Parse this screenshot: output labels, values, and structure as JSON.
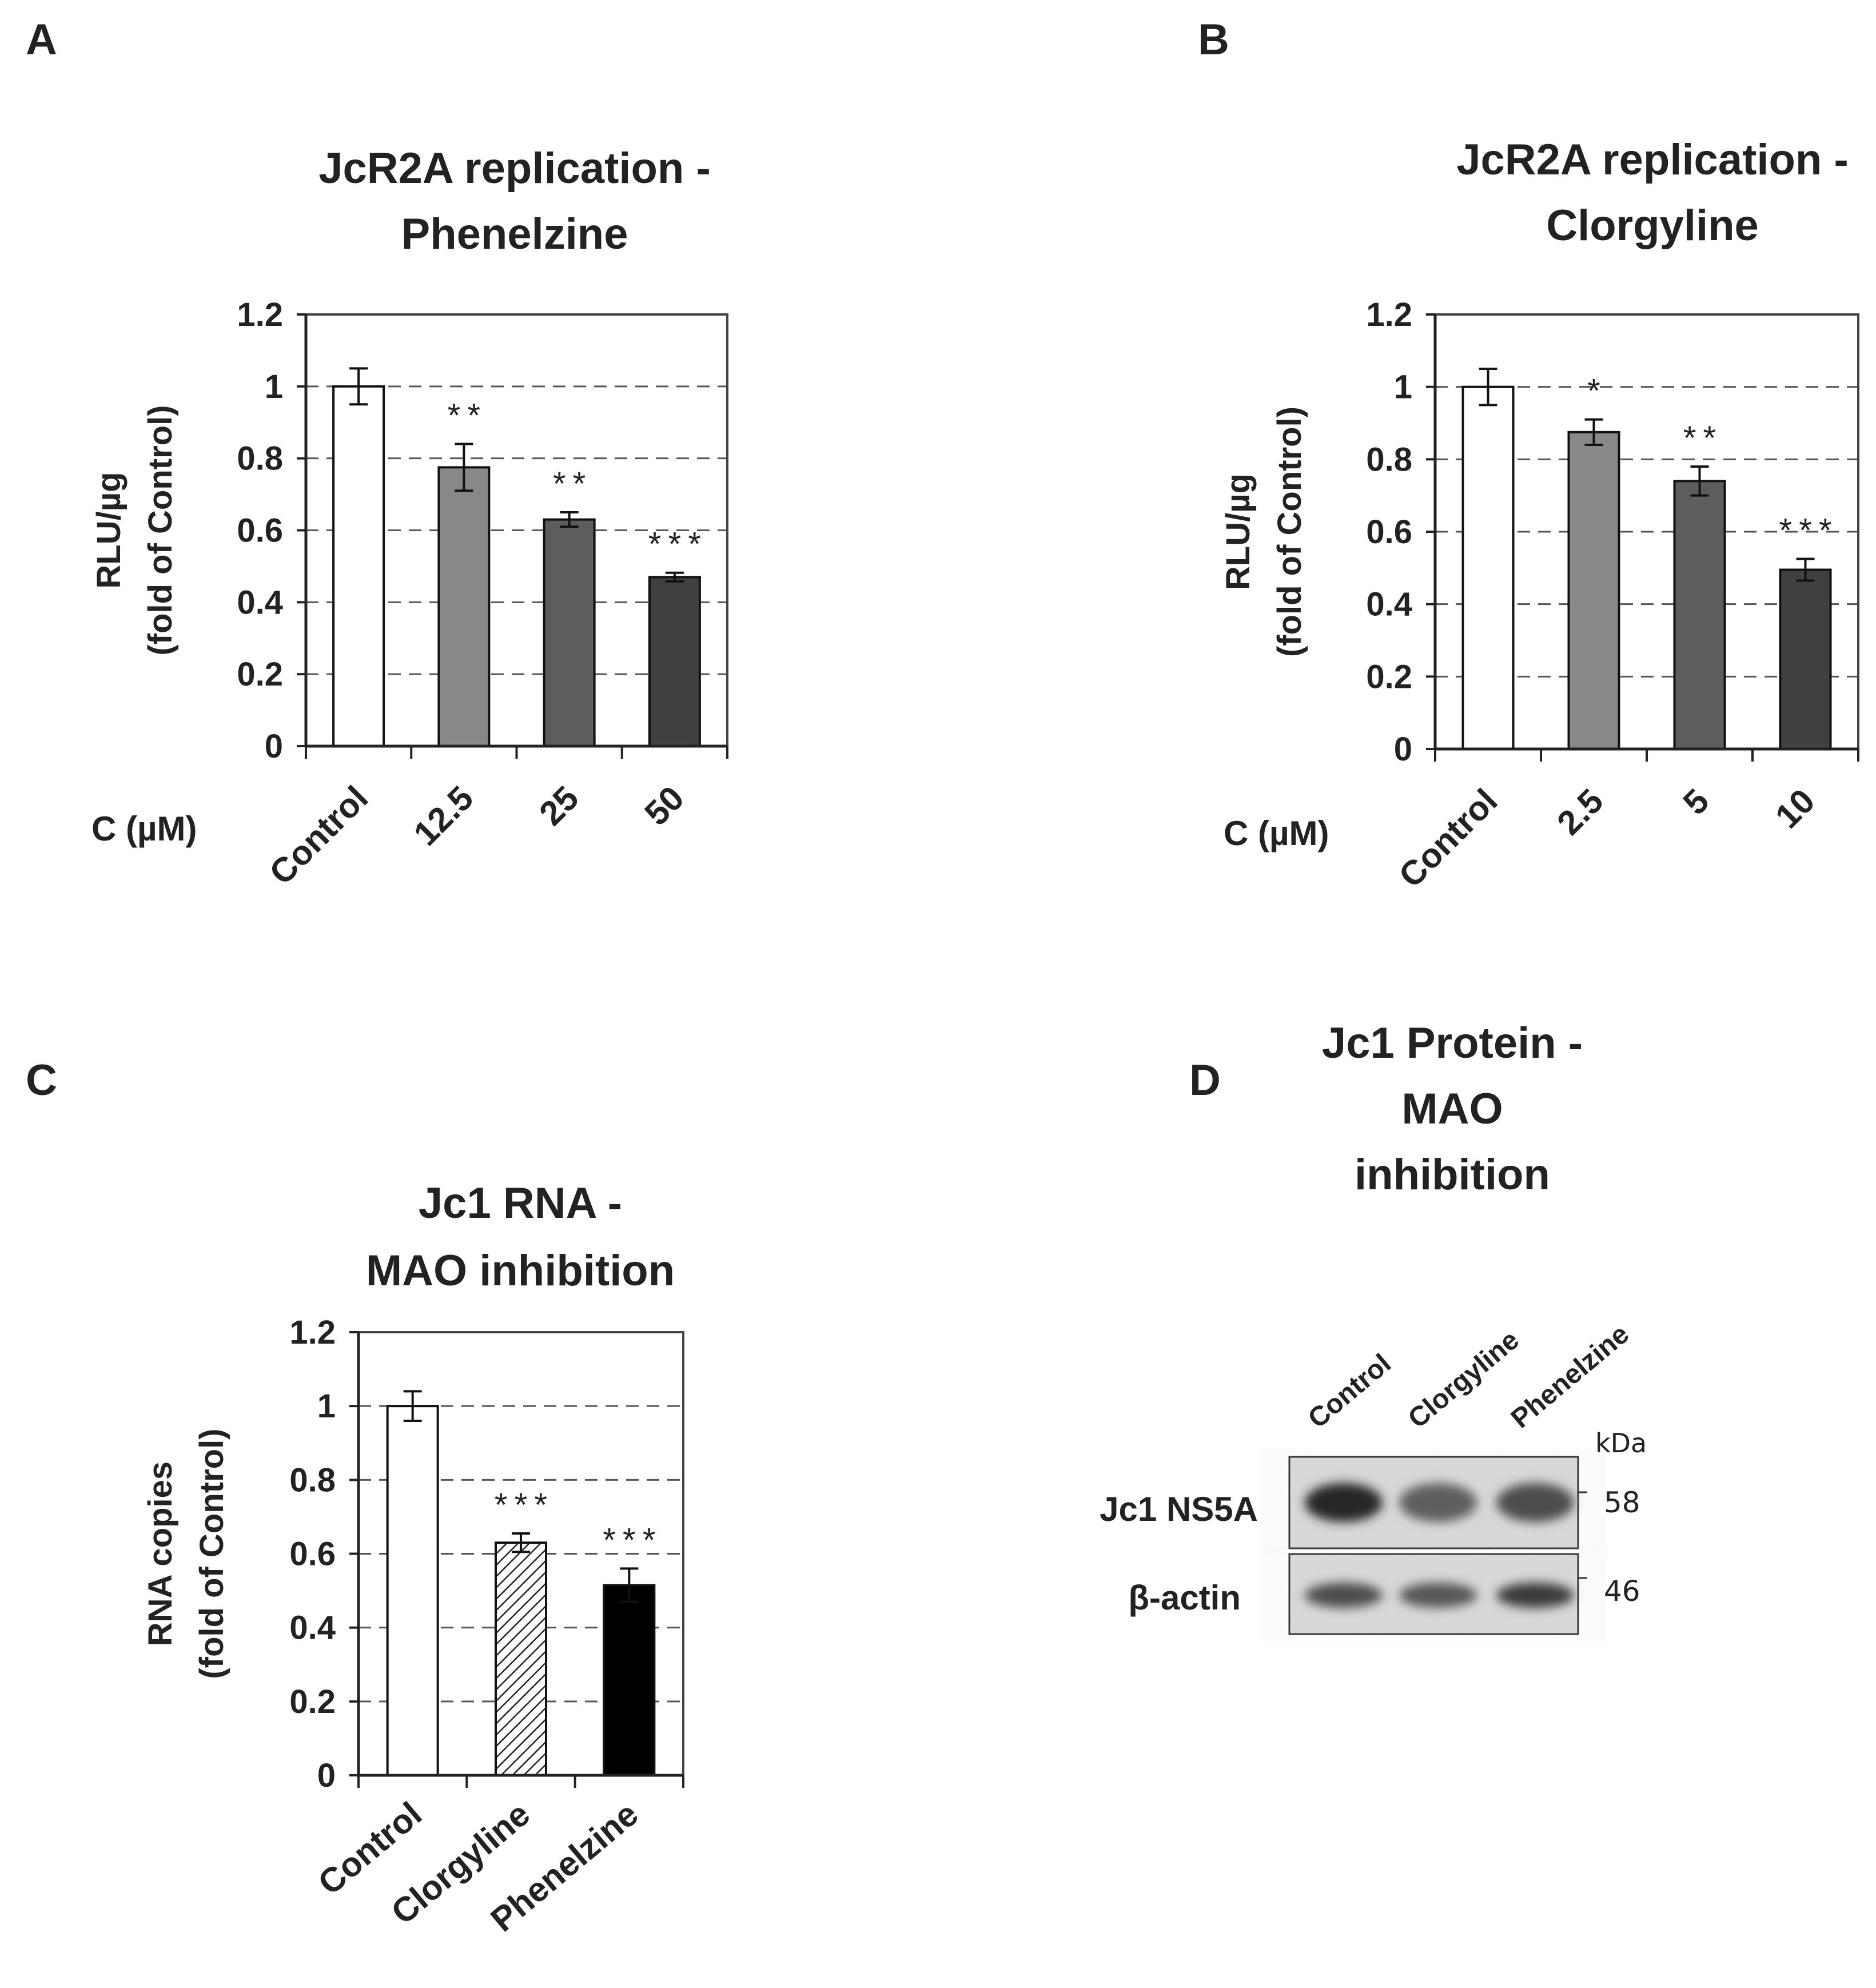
{
  "panel_letters": [
    "A",
    "B",
    "C",
    "D"
  ],
  "chart_data": [
    {
      "type": "bar",
      "panel": "A",
      "title_lines": [
        "JcR2A replication -",
        "Phenelzine"
      ],
      "ylabel_lines": [
        "RLU/µg",
        "(fold of Control)"
      ],
      "xlabel": "C (µM)",
      "ylim": [
        0,
        1.2
      ],
      "yticks": [
        "0",
        "0.2",
        "0.4",
        "0.6",
        "0.8",
        "1",
        "1.2"
      ],
      "grid": "dashed horizontal",
      "categories": [
        "Control",
        "12.5",
        "25",
        "50"
      ],
      "values": [
        1.0,
        0.775,
        0.63,
        0.47
      ],
      "errors": [
        0.05,
        0.065,
        0.02,
        0.012
      ],
      "significance": [
        "",
        "**",
        "**",
        "***"
      ],
      "colors": [
        "#ffffff",
        "#888888",
        "#5d5d5d",
        "#404040"
      ]
    },
    {
      "type": "bar",
      "panel": "B",
      "title_lines": [
        "JcR2A replication -",
        "Clorgyline"
      ],
      "ylabel_lines": [
        "RLU/µg",
        "(fold of Control)"
      ],
      "xlabel": "C (µM)",
      "ylim": [
        0,
        1.2
      ],
      "yticks": [
        "0",
        "0.2",
        "0.4",
        "0.6",
        "0.8",
        "1",
        "1.2"
      ],
      "grid": "dashed horizontal",
      "categories": [
        "Control",
        "2.5",
        "5",
        "10"
      ],
      "values": [
        1.0,
        0.875,
        0.74,
        0.495
      ],
      "errors": [
        0.05,
        0.035,
        0.04,
        0.03
      ],
      "significance": [
        "",
        "*",
        "**",
        "***"
      ],
      "colors": [
        "#ffffff",
        "#888888",
        "#5d5d5d",
        "#404040"
      ]
    },
    {
      "type": "bar",
      "panel": "C",
      "title_lines": [
        "Jc1 RNA -",
        "MAO inhibition"
      ],
      "ylabel_lines": [
        "RNA copies",
        "(fold of Control)"
      ],
      "xlabel": "",
      "ylim": [
        0,
        1.2
      ],
      "yticks": [
        "0",
        "0.2",
        "0.4",
        "0.6",
        "0.8",
        "1",
        "1.2"
      ],
      "grid": "dashed horizontal",
      "categories": [
        "Control",
        "Clorgyline",
        "Phenelzine"
      ],
      "values": [
        1.0,
        0.63,
        0.515
      ],
      "errors": [
        0.04,
        0.025,
        0.045
      ],
      "significance": [
        "",
        "***",
        "***"
      ],
      "colors": [
        "#ffffff",
        "hatched",
        "#000000"
      ]
    }
  ],
  "western_blot": {
    "panel": "D",
    "title_lines": [
      "Jc1 Protein -",
      "MAO",
      "inhibition"
    ],
    "lanes": [
      "Control",
      "Clorgyline",
      "Phenelzine"
    ],
    "kda_label": "kDa",
    "rows": [
      {
        "label": "Jc1 NS5A",
        "kda": "58",
        "intensities": [
          0.85,
          0.55,
          0.65
        ]
      },
      {
        "label": "β-actin",
        "kda": "46",
        "intensities": [
          0.65,
          0.6,
          0.75
        ]
      }
    ]
  }
}
